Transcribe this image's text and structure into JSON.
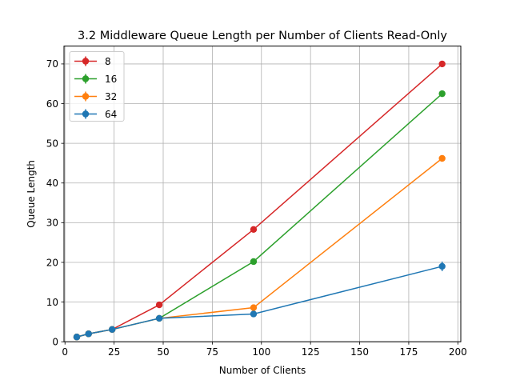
{
  "chart_data": {
    "type": "line",
    "title": "3.2 Middleware Queue Length per Number of Clients Read-Only",
    "xlabel": "Number of Clients",
    "ylabel": "Queue Length",
    "xlim": [
      -0.5,
      201.5
    ],
    "ylim": [
      0,
      74.5
    ],
    "xticks": [
      0,
      25,
      50,
      75,
      100,
      125,
      150,
      175,
      200
    ],
    "yticks": [
      0,
      10,
      20,
      30,
      40,
      50,
      60,
      70
    ],
    "grid": true,
    "legend_position": "top-left",
    "x": [
      6,
      12,
      24,
      48,
      96,
      192
    ],
    "series": [
      {
        "name": "8",
        "color": "#d62728",
        "values": [
          1.2,
          2.0,
          3.1,
          9.3,
          28.3,
          70.0
        ],
        "errors": [
          0.2,
          0.2,
          0.2,
          0.3,
          0.4,
          0.6
        ]
      },
      {
        "name": "16",
        "color": "#2ca02c",
        "values": [
          1.2,
          2.0,
          3.1,
          5.9,
          20.2,
          62.5
        ],
        "errors": [
          0.2,
          0.2,
          0.2,
          0.3,
          0.4,
          0.6
        ]
      },
      {
        "name": "32",
        "color": "#ff7f0e",
        "values": [
          1.2,
          2.0,
          3.1,
          5.9,
          8.6,
          46.2
        ],
        "errors": [
          0.2,
          0.2,
          0.2,
          0.3,
          0.4,
          0.6
        ]
      },
      {
        "name": "64",
        "color": "#1f77b4",
        "values": [
          1.2,
          2.0,
          3.1,
          5.9,
          7.0,
          19.0
        ],
        "errors": [
          0.2,
          0.2,
          0.2,
          0.3,
          0.5,
          1.2
        ]
      }
    ]
  }
}
